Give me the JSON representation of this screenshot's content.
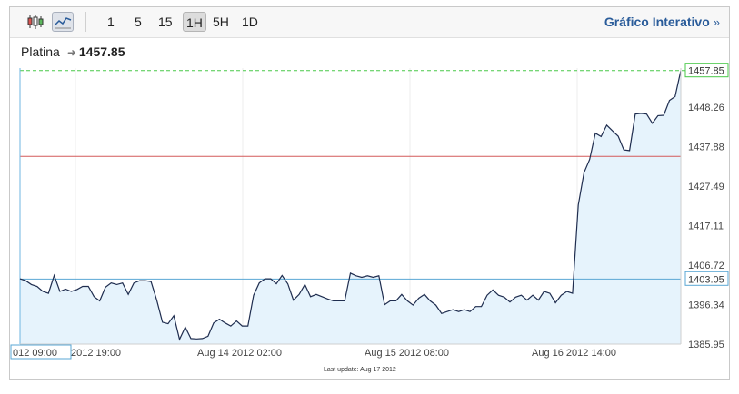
{
  "toolbar": {
    "chart_types": [
      {
        "name": "candlestick-chart-icon",
        "active": false
      },
      {
        "name": "line-chart-icon",
        "active": true
      }
    ],
    "periods": [
      "1",
      "5",
      "15",
      "1H",
      "5H",
      "1D"
    ],
    "active_period": "1H",
    "interactive_label": "Gráfico Interativo",
    "interactive_chevron": "»"
  },
  "header": {
    "instrument": "Platina",
    "arrow_icon": "arrow-right-icon",
    "price": "1457.85"
  },
  "footer": {
    "last_update": "Last update: Aug 17 2012"
  },
  "colors": {
    "line": "#1f2d4f",
    "area": "#e6f3fc",
    "red_line": "#d45a5a",
    "blue_line": "#5aa7d4",
    "dashed": "#48c848",
    "accent": "#2a5c9a"
  },
  "chart_data": {
    "type": "area",
    "title": "",
    "xlabel": "",
    "ylabel": "",
    "x_ticks": [
      "012 09:00",
      "2012 19:00",
      "Aug 14 2012 02:00",
      "Aug 15 2012 08:00",
      "Aug 16 2012 14:00"
    ],
    "y_ticks": [
      "1457.85",
      "1448.26",
      "1437.88",
      "1427.49",
      "1417.11",
      "1406.72",
      "1403.05",
      "1396.34",
      "1385.95"
    ],
    "ylim": [
      1385.95,
      1458.5
    ],
    "current_value": 1457.85,
    "reference_lines": {
      "red": 1435.3,
      "blue": 1403.05
    },
    "values": [
      1403.1,
      1402.6,
      1401.6,
      1401.1,
      1399.8,
      1399.3,
      1404.0,
      1399.8,
      1400.4,
      1399.8,
      1400.3,
      1401.1,
      1401.1,
      1398.4,
      1397.3,
      1400.9,
      1402.0,
      1401.6,
      1402.0,
      1399.0,
      1402.0,
      1402.6,
      1402.6,
      1402.4,
      1397.5,
      1391.7,
      1391.3,
      1393.4,
      1387.2,
      1390.4,
      1387.4,
      1387.3,
      1387.4,
      1388.0,
      1391.5,
      1392.5,
      1391.5,
      1390.7,
      1392.0,
      1390.7,
      1390.7,
      1398.8,
      1402.0,
      1403.1,
      1403.1,
      1401.8,
      1404.0,
      1401.8,
      1397.5,
      1399.0,
      1401.6,
      1398.4,
      1399.0,
      1398.4,
      1397.8,
      1397.3,
      1397.3,
      1397.3,
      1404.6,
      1403.9,
      1403.5,
      1403.9,
      1403.5,
      1403.9,
      1396.3,
      1397.3,
      1397.3,
      1399.0,
      1397.3,
      1396.2,
      1398.0,
      1399.0,
      1397.3,
      1396.2,
      1394.0,
      1394.5,
      1395.0,
      1394.5,
      1395.0,
      1394.5,
      1395.8,
      1395.8,
      1398.8,
      1400.2,
      1398.8,
      1398.3,
      1397.0,
      1398.3,
      1398.8,
      1397.5,
      1398.8,
      1397.5,
      1399.8,
      1399.3,
      1396.8,
      1398.8,
      1399.8,
      1399.3,
      1422.5,
      1431.0,
      1434.5,
      1441.4,
      1440.5,
      1443.5,
      1442.0,
      1440.6,
      1437.0,
      1436.8,
      1446.4,
      1446.6,
      1446.4,
      1444.0,
      1446.0,
      1446.1,
      1450.0,
      1451.0,
      1457.85
    ]
  }
}
